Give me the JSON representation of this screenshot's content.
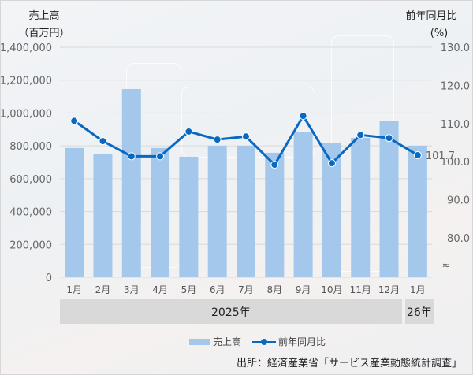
{
  "chart_data": {
    "type": "bar+line",
    "title": "",
    "left_axis": {
      "title_line1": "売上高",
      "title_line2": "（百万円）",
      "ticks": [
        "1,400,000",
        "1,200,000",
        "1,000,000",
        "800,000",
        "600,000",
        "400,000",
        "200,000",
        "0"
      ],
      "ylim": [
        0,
        1400000
      ]
    },
    "right_axis": {
      "title_line1": "前年同月比",
      "title_line2": "(%)",
      "ticks": [
        "130.0",
        "120.0",
        "110.0",
        "100.0",
        "90.0",
        "80.0"
      ],
      "ylim": [
        80,
        130
      ],
      "break_symbol": "≈"
    },
    "categories": [
      "1月",
      "2月",
      "3月",
      "4月",
      "5月",
      "6月",
      "7月",
      "8月",
      "9月",
      "10月",
      "11月",
      "12月",
      "1月"
    ],
    "year_groups": [
      {
        "label": "2025年",
        "span": 12
      },
      {
        "label": "26年",
        "span": 1
      }
    ],
    "series": [
      {
        "name": "売上高",
        "type": "bar",
        "axis": "left",
        "color": "#a3c8ec",
        "values": [
          787000,
          748000,
          1146000,
          787000,
          734000,
          801000,
          801000,
          758000,
          882000,
          815000,
          849000,
          950000,
          801000
        ]
      },
      {
        "name": "前年同月比",
        "type": "line",
        "axis": "right",
        "color": "#0868c2",
        "values": [
          110.7,
          105.4,
          101.4,
          101.4,
          107.9,
          105.8,
          106.6,
          99.2,
          112.0,
          99.6,
          107.0,
          106.2,
          101.7
        ]
      }
    ],
    "annotations": [
      {
        "category_index": 12,
        "series": "前年同月比",
        "text": "101.7"
      }
    ],
    "grid": true,
    "legend_position": "bottom"
  },
  "legend": {
    "bar_label": "売上高",
    "line_label": "前年同月比"
  },
  "source": "出所：経済産業省「サービス産業動態統計調査」"
}
